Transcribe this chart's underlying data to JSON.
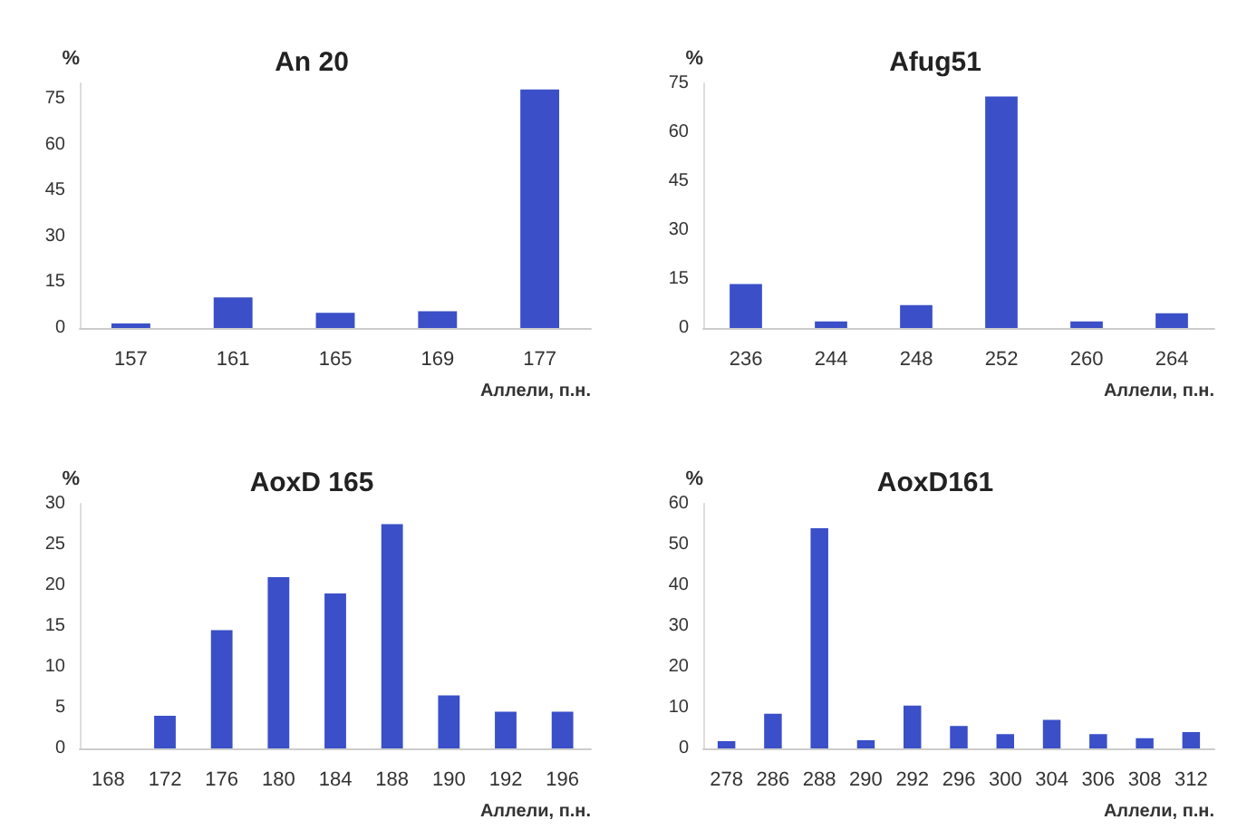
{
  "chart_data": [
    {
      "type": "bar",
      "title": "An 20",
      "xlabel": "Аллели, п.н.",
      "ylabel": "%",
      "categories": [
        "157",
        "161",
        "165",
        "169",
        "177"
      ],
      "values": [
        1.5,
        10,
        5,
        5.5,
        78
      ],
      "color": "#3a4fc8",
      "ylim": [
        0,
        80
      ],
      "yticks": [
        0,
        15,
        30,
        45,
        60,
        75
      ],
      "grid": false
    },
    {
      "type": "bar",
      "title": "Afug51",
      "xlabel": "Аллели, п.н.",
      "ylabel": "%",
      "categories": [
        "236",
        "244",
        "248",
        "252",
        "260",
        "264"
      ],
      "values": [
        13.5,
        2,
        7,
        71,
        2,
        4.5
      ],
      "color": "#3a4fc8",
      "ylim": [
        0,
        75
      ],
      "yticks": [
        0,
        15,
        30,
        45,
        60,
        75
      ],
      "grid": false
    },
    {
      "type": "bar",
      "title": "AoxD 165",
      "xlabel": "Аллели, п.н.",
      "ylabel": "%",
      "categories": [
        "168",
        "172",
        "176",
        "180",
        "184",
        "188",
        "190",
        "192",
        "196"
      ],
      "values": [
        0,
        4,
        14.5,
        21,
        19,
        27.5,
        6.5,
        4.5,
        4.5
      ],
      "color": "#3a4fc8",
      "ylim": [
        0,
        30
      ],
      "yticks": [
        0,
        5,
        10,
        15,
        20,
        25,
        30
      ],
      "grid": false
    },
    {
      "type": "bar",
      "title": "AoxD161",
      "xlabel": "Аллели, п.н.",
      "ylabel": "%",
      "categories": [
        "278",
        "286",
        "288",
        "290",
        "292",
        "296",
        "300",
        "304",
        "306",
        "308",
        "312"
      ],
      "values": [
        1.8,
        8.5,
        54,
        2,
        10.5,
        5.5,
        3.5,
        7,
        3.5,
        2.5,
        4
      ],
      "color": "#3a4fc8",
      "ylim": [
        0,
        60
      ],
      "yticks": [
        0,
        10,
        20,
        30,
        40,
        50,
        60
      ],
      "grid": false
    }
  ]
}
